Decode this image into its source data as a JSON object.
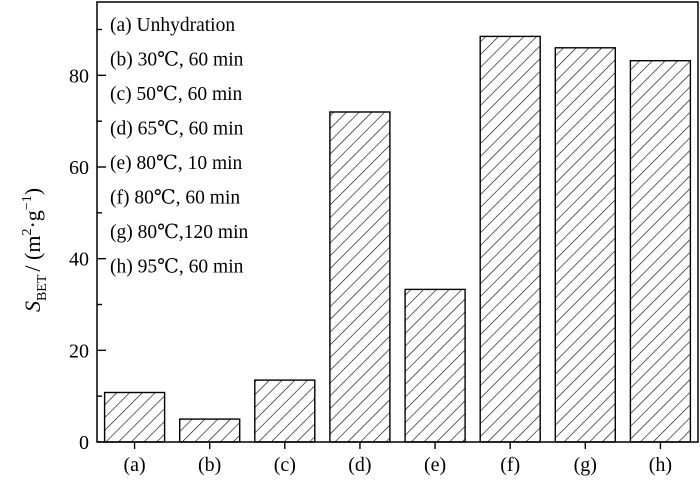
{
  "chart_data": {
    "type": "bar",
    "categories": [
      "(a)",
      "(b)",
      "(c)",
      "(d)",
      "(e)",
      "(f)",
      "(g)",
      "(h)"
    ],
    "values": [
      10.8,
      5.0,
      13.5,
      72.0,
      33.3,
      88.5,
      86.0,
      83.2
    ],
    "title": "",
    "xlabel": "",
    "ylabel": {
      "symbol": "S",
      "subscript": "BET",
      "unit": "/ (m",
      "unit_sup1": "2",
      "unit_mid": "·g",
      "unit_sup2": "−1",
      "unit_end": ")"
    },
    "ylim": [
      0,
      96
    ],
    "yticks": [
      0,
      20,
      40,
      60,
      80
    ],
    "ytick_labels": [
      "0",
      "20",
      "40",
      "60",
      "80"
    ],
    "grid": false,
    "bar_fill": "diagonal hatch",
    "legend": {
      "placement": "top-left",
      "entries": [
        "(a) Unhydration",
        "(b) 30℃, 60 min",
        "(c) 50℃, 60 min",
        "(d) 65℃, 60 min",
        "(e) 80℃, 10 min",
        "(f) 80℃, 60 min",
        "(g) 80℃,120 min",
        "(h) 95℃, 60 min"
      ]
    }
  },
  "colors": {
    "ink": "#000000",
    "background": "#ffffff"
  }
}
